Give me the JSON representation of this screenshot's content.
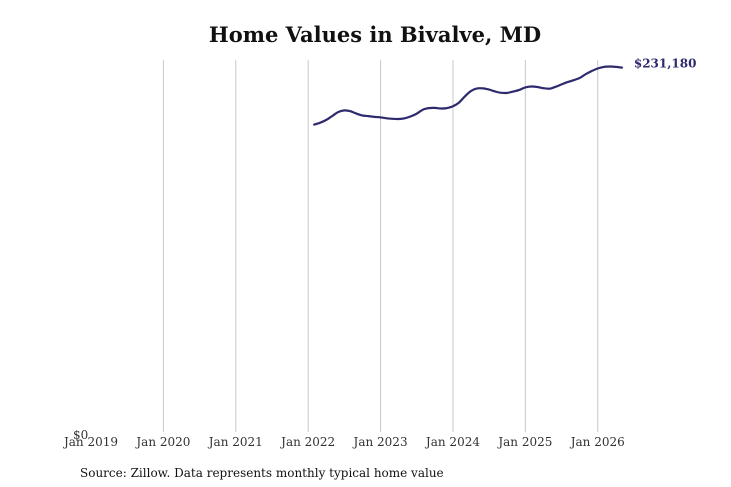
{
  "chart_data": {
    "type": "line",
    "title": "Home Values in Bivalve, MD",
    "source": "Source: Zillow. Data represents monthly typical home value",
    "y_min_label": "$0",
    "end_label": "$231,180",
    "line_color": "#2e2a6e",
    "grid": "vertical",
    "x_ticks": [
      "Jan 2019",
      "Jan 2020",
      "Jan 2021",
      "Jan 2022",
      "Jan 2023",
      "Jan 2024",
      "Jan 2025",
      "Jan 2026"
    ],
    "x_range": [
      "2019-01",
      "2026-09"
    ],
    "ylim": [
      0,
      236000
    ],
    "series": [
      {
        "points": [
          [
            "2022-02",
            195000
          ],
          [
            "2022-03",
            196200
          ],
          [
            "2022-04",
            198000
          ],
          [
            "2022-05",
            200500
          ],
          [
            "2022-06",
            203000
          ],
          [
            "2022-07",
            204000
          ],
          [
            "2022-08",
            203500
          ],
          [
            "2022-09",
            202000
          ],
          [
            "2022-10",
            200800
          ],
          [
            "2022-11",
            200400
          ],
          [
            "2022-12",
            199900
          ],
          [
            "2023-01",
            199600
          ],
          [
            "2023-02",
            199000
          ],
          [
            "2023-03",
            198700
          ],
          [
            "2023-04",
            198600
          ],
          [
            "2023-05",
            199000
          ],
          [
            "2023-06",
            200200
          ],
          [
            "2023-07",
            202000
          ],
          [
            "2023-08",
            204500
          ],
          [
            "2023-09",
            205500
          ],
          [
            "2023-10",
            205600
          ],
          [
            "2023-11",
            205200
          ],
          [
            "2023-12",
            205500
          ],
          [
            "2024-01",
            206600
          ],
          [
            "2024-02",
            209000
          ],
          [
            "2024-03",
            213000
          ],
          [
            "2024-04",
            216400
          ],
          [
            "2024-05",
            218000
          ],
          [
            "2024-06",
            218000
          ],
          [
            "2024-07",
            217200
          ],
          [
            "2024-08",
            216000
          ],
          [
            "2024-09",
            215200
          ],
          [
            "2024-10",
            215100
          ],
          [
            "2024-11",
            216000
          ],
          [
            "2024-12",
            217000
          ],
          [
            "2025-01",
            218600
          ],
          [
            "2025-02",
            219200
          ],
          [
            "2025-03",
            218900
          ],
          [
            "2025-04",
            218100
          ],
          [
            "2025-05",
            217800
          ],
          [
            "2025-06",
            219000
          ],
          [
            "2025-07",
            220500
          ],
          [
            "2025-08",
            222000
          ],
          [
            "2025-09",
            223200
          ],
          [
            "2025-10",
            224600
          ],
          [
            "2025-11",
            227000
          ],
          [
            "2025-12",
            229000
          ],
          [
            "2026-01",
            230600
          ],
          [
            "2026-02",
            231600
          ],
          [
            "2026-03",
            231900
          ],
          [
            "2026-04",
            231600
          ],
          [
            "2026-05",
            231180
          ]
        ]
      }
    ]
  }
}
